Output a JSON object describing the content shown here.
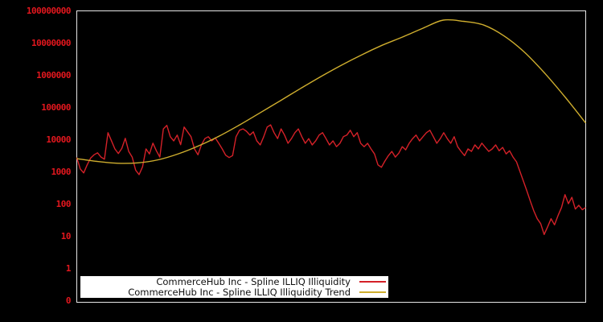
{
  "colors": {
    "background": "#000000",
    "plot_border": "#e6e6e6",
    "axis_label": "#e3171e",
    "series_red": "#d42128",
    "series_gold": "#cfae2e",
    "legend_background": "#ffffff",
    "legend_text": "#111111"
  },
  "chart_data": {
    "type": "line",
    "title": "",
    "xlabel": "",
    "ylabel": "",
    "grid": false,
    "x_axis": {
      "tick_labels_visible": false
    },
    "y_axis": {
      "scale": "log",
      "tick_labels": [
        "100000000",
        "10000000",
        "1000000",
        "100000",
        "10000",
        "1000",
        "100",
        "10",
        "1",
        "0"
      ],
      "range_top": 100000000,
      "range_bottom": 0
    },
    "legend": {
      "position": "bottom-center-inside",
      "entries": [
        {
          "label": "CommerceHub Inc - Spline ILLIQ Illiquidity",
          "color": "#d42128"
        },
        {
          "label": "CommerceHub Inc - Spline ILLIQ Illiquidity Trend",
          "color": "#cfae2e"
        }
      ]
    },
    "series": [
      {
        "name": "CommerceHub Inc - Spline ILLIQ Illiquidity",
        "color": "#d42128",
        "style": "jagged",
        "values": [
          2700,
          1200,
          900,
          1600,
          2600,
          3300,
          3800,
          2800,
          2400,
          16000,
          9000,
          5000,
          3600,
          5200,
          10700,
          4200,
          2800,
          1100,
          800,
          1400,
          5000,
          3500,
          7600,
          4400,
          2800,
          21000,
          27000,
          12000,
          8900,
          13500,
          6800,
          24000,
          17000,
          12000,
          5000,
          3300,
          6700,
          10500,
          12000,
          8900,
          11000,
          7500,
          5000,
          3200,
          2700,
          3100,
          12000,
          19000,
          21000,
          17800,
          13500,
          17000,
          8900,
          6700,
          12000,
          24000,
          28000,
          16000,
          10500,
          21000,
          13500,
          7500,
          10500,
          16000,
          21000,
          12000,
          7500,
          10500,
          6700,
          8900,
          13500,
          16000,
          10500,
          6700,
          8900,
          5900,
          7500,
          12000,
          13500,
          19000,
          12000,
          16000,
          7500,
          5900,
          7500,
          5000,
          3500,
          1600,
          1350,
          2100,
          3100,
          4200,
          2800,
          3700,
          5900,
          4700,
          7500,
          10500,
          13500,
          8900,
          12000,
          16000,
          19000,
          12000,
          7500,
          10500,
          16000,
          10500,
          7500,
          12000,
          5900,
          4200,
          3100,
          5000,
          4200,
          6700,
          5000,
          7600,
          5600,
          4200,
          5000,
          6700,
          4400,
          5600,
          3500,
          4400,
          2800,
          2000,
          1000,
          500,
          250,
          120,
          60,
          34,
          24,
          11,
          19,
          34,
          22,
          43,
          76,
          190,
          100,
          158,
          68,
          89,
          65,
          76
        ]
      },
      {
        "name": "CommerceHub Inc - Spline ILLIQ Illiquidity Trend",
        "color": "#cfae2e",
        "style": "smooth",
        "values": [
          2500,
          2050,
          1800,
          1850,
          2300,
          3550,
          6300,
          12600,
          28000,
          66000,
          158000,
          380000,
          890000,
          2000000,
          4200000,
          8300000,
          15000000,
          28000000,
          50000000,
          46000000,
          35000000,
          16000000,
          5000000,
          1100000,
          200000,
          32000
        ]
      }
    ]
  }
}
